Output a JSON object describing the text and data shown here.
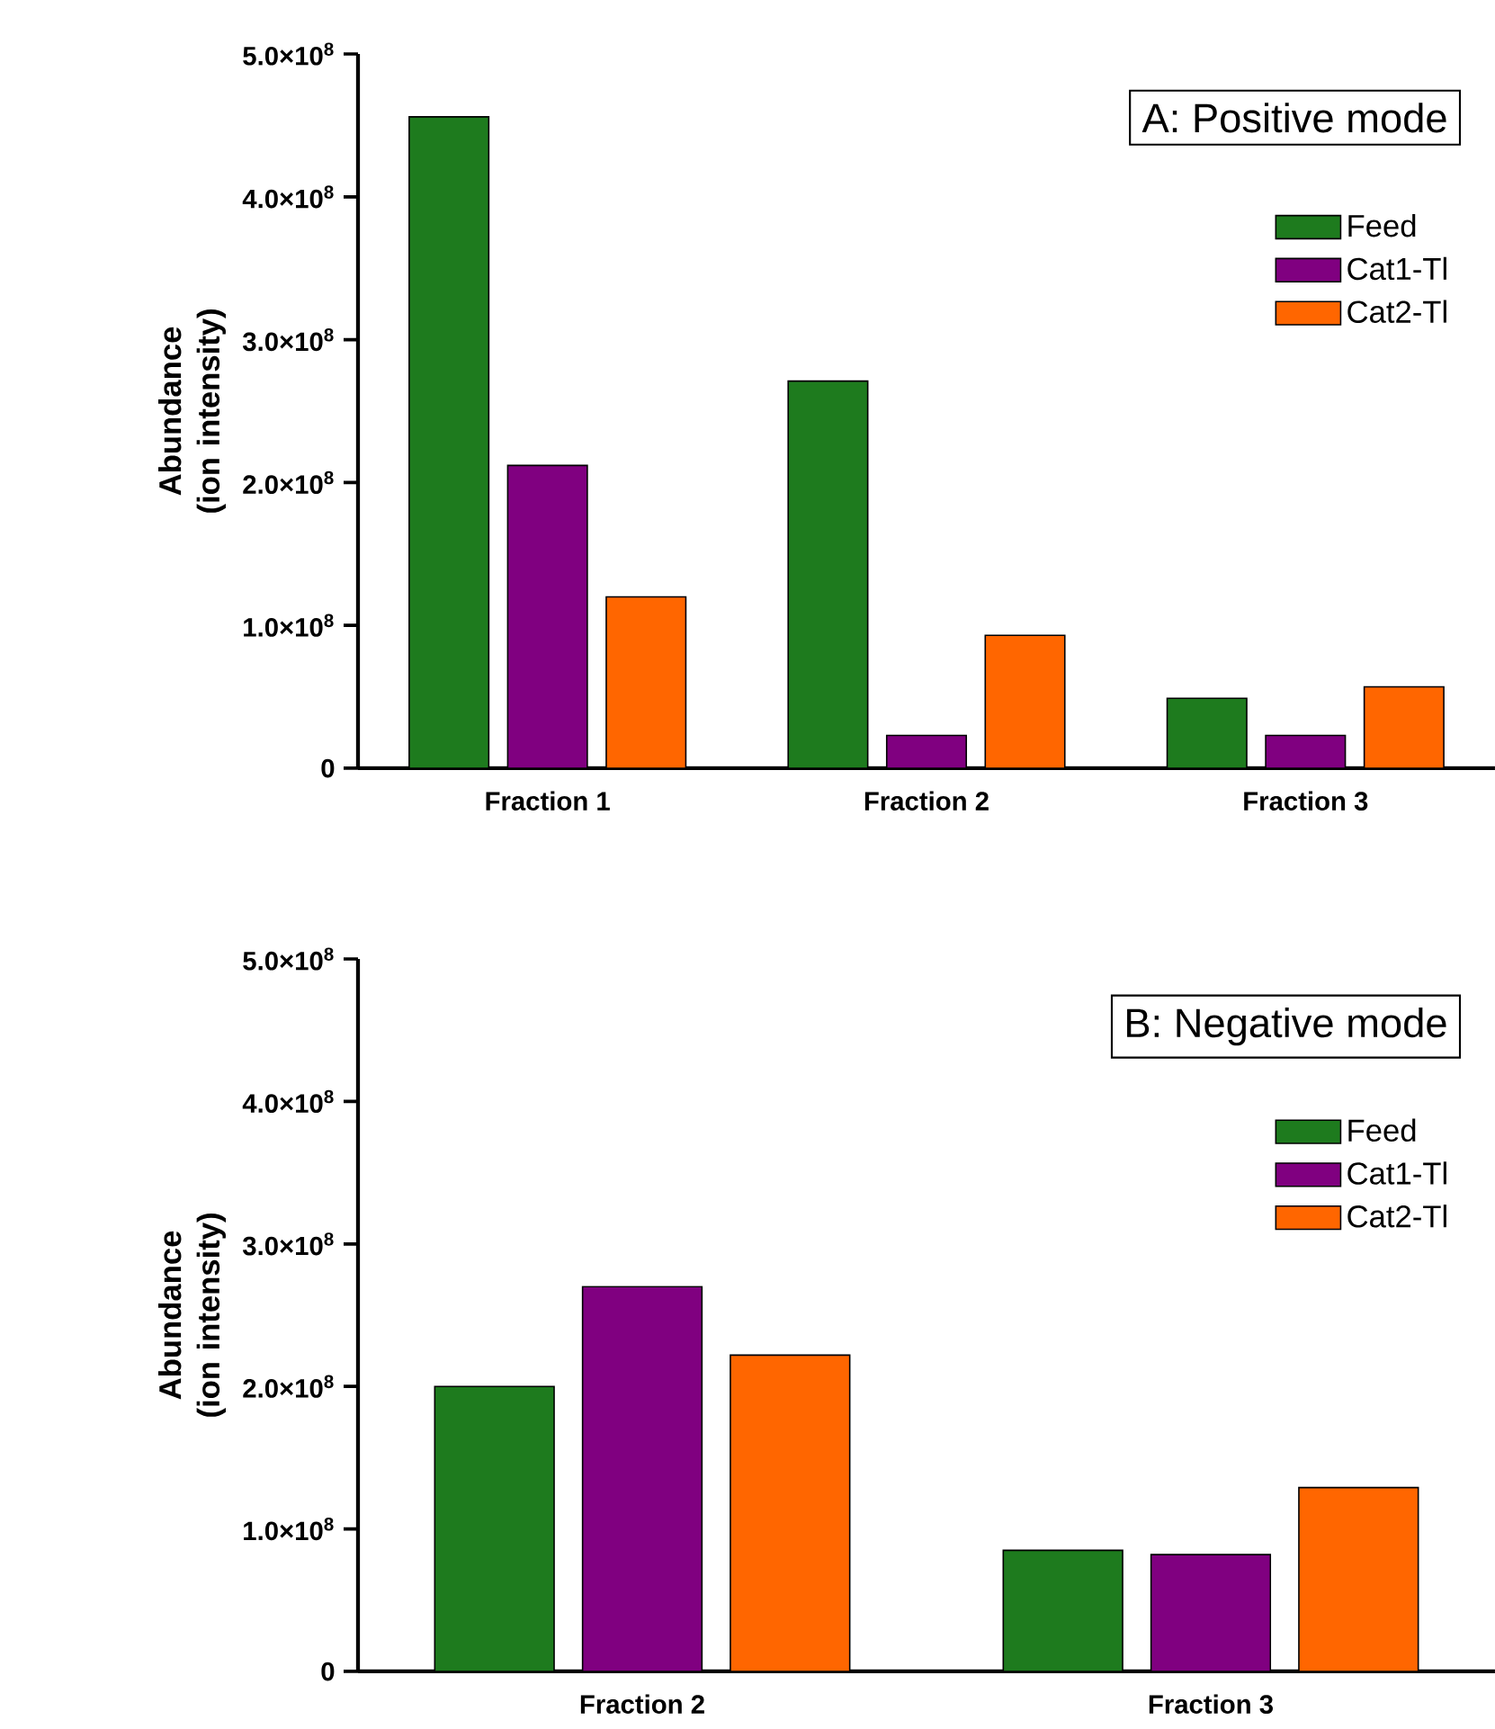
{
  "chart_data": [
    {
      "type": "bar",
      "title": "A: Positive mode",
      "ylabel": "Abundance (ion intensity)",
      "categories": [
        "Fraction 1",
        "Fraction 2",
        "Fraction 3"
      ],
      "series": [
        {
          "name": "Feed",
          "color": "#1e7b1e",
          "values": [
            456000000,
            271000000,
            49000000
          ]
        },
        {
          "name": "Cat1-Tl",
          "color": "#800080",
          "values": [
            212000000,
            23000000,
            23000000
          ]
        },
        {
          "name": "Cat2-Tl",
          "color": "#ff6600",
          "values": [
            120000000,
            93000000,
            57000000
          ]
        }
      ],
      "ylim": [
        0,
        500000000
      ],
      "yticks": [
        0,
        {
          "value": 100000000,
          "label": "1.0×10$^{8}$"
        },
        {
          "value": 200000000,
          "label": "2.0×10$^{8}$"
        },
        {
          "value": 300000000,
          "label": "3.0×10$^{8}$"
        },
        {
          "value": 400000000,
          "label": "4.0×10$^{8}$"
        },
        {
          "value": 500000000,
          "label": "5.0×10$^{8}$"
        }
      ],
      "legend": "top right"
    },
    {
      "type": "bar",
      "title": "B: Negative mode",
      "ylabel": "Abundance (ion intensity)",
      "categories": [
        "Fraction 2",
        "Fraction 3"
      ],
      "series": [
        {
          "name": "Feed",
          "color": "#1e7b1e",
          "values": [
            200000000,
            85000000
          ]
        },
        {
          "name": "Cat1-Tl",
          "color": "#800080",
          "values": [
            270000000,
            82000000
          ]
        },
        {
          "name": "Cat2-Tl",
          "color": "#ff6600",
          "values": [
            222000000,
            129000000
          ]
        }
      ],
      "ylim": [
        0,
        500000000
      ],
      "yticks": [
        0,
        {
          "value": 100000000,
          "label": "1.0×10$^{8}$"
        },
        {
          "value": 200000000,
          "label": "2.0×10$^{8}$"
        },
        {
          "value": 300000000,
          "label": "3.0×10$^{8}$"
        },
        {
          "value": 400000000,
          "label": "4.0×10$^{8}$"
        },
        {
          "value": 500000000,
          "label": "5.0×10$^{8}$"
        }
      ],
      "legend": "top right"
    }
  ]
}
